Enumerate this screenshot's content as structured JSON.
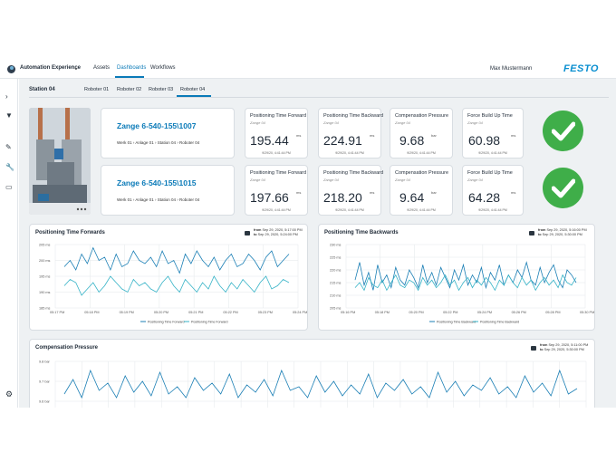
{
  "header": {
    "app_title": "Automation Experience",
    "nav": [
      "Assets",
      "Dashboards",
      "Workflows"
    ],
    "user": "Max Mustermann",
    "brand": "FESTO"
  },
  "station": {
    "label": "Station 04",
    "tabs": [
      "Roboter 01",
      "Roboter 02",
      "Roboter 03",
      "Roboter 04"
    ]
  },
  "rows": [
    {
      "name": "Zange 6-540-155\\1007",
      "path": "Werk 01 › Anlage 01 › Station 04 › Roboter 04",
      "metrics": [
        {
          "title": "Positioning Time Forward",
          "sub": "Zange 04",
          "value": "195.44",
          "unit": "ms",
          "date": "9/29/20, 4:41:44 PM"
        },
        {
          "title": "Positioning Time Backward",
          "sub": "Zange 04",
          "value": "224.91",
          "unit": "ms",
          "date": "9/29/20, 4:41:44 PM"
        },
        {
          "title": "Compensation Pressure",
          "sub": "Zange 04",
          "value": "9.68",
          "unit": "bar",
          "date": "9/29/20, 4:41:44 PM"
        },
        {
          "title": "Force Build Up Time",
          "sub": "Zange 04",
          "value": "60.98",
          "unit": "ms",
          "date": "9/29/20, 4:41:44 PM"
        }
      ],
      "status": "ok"
    },
    {
      "name": "Zange 6-540-155\\1015",
      "path": "Werk 01 › Anlage 01 › Station 04 › Roboter 04",
      "metrics": [
        {
          "title": "Positioning Time Forward",
          "sub": "Zange 04",
          "value": "197.66",
          "unit": "ms",
          "date": "9/29/20, 4:41:44 PM"
        },
        {
          "title": "Positioning Time Backward",
          "sub": "Zange 04",
          "value": "218.20",
          "unit": "ms",
          "date": "9/29/20, 4:41:44 PM"
        },
        {
          "title": "Compensation Pressure",
          "sub": "Zange 04",
          "value": "9.64",
          "unit": "bar",
          "date": "9/29/20, 4:41:44 PM"
        },
        {
          "title": "Force Build Up Time",
          "sub": "Zange 04",
          "value": "64.28",
          "unit": "ms",
          "date": "9/29/20, 4:41:44 PM"
        }
      ],
      "status": "ok"
    }
  ],
  "charts": {
    "forward": {
      "title": "Positioning Time Forwards",
      "from_label": "from",
      "from": "Sep 29, 2020, 5:17:00 PM",
      "to_label": "to",
      "to": "Sep 29, 2020, 5:24:00 PM"
    },
    "backward": {
      "title": "Positioning Time Backwards",
      "from_label": "from",
      "from": "Sep 29, 2020, 5:16:00 PM",
      "to_label": "to",
      "to": "Sep 29, 2020, 5:30:00 PM"
    },
    "pressure": {
      "title": "Compensation Pressure",
      "from_label": "from",
      "from": "Sep 29, 2020, 5:11:00 PM",
      "to_label": "to",
      "to": "Sep 29, 2020, 5:30:00 PM"
    }
  },
  "colors": {
    "accent": "#0a7ab8",
    "series1": "#1b7fb5",
    "series2": "#36b3c7",
    "ok": "#3fae49"
  },
  "chart_data": [
    {
      "type": "line",
      "title": "Positioning Time Forwards",
      "x_ticks": [
        "05:17 PM",
        "05:18 PM",
        "05:19 PM",
        "05:20 PM",
        "05:21 PM",
        "05:22 PM",
        "05:23 PM",
        "05:24 PM"
      ],
      "y_ticks": [
        "185 ms",
        "190 ms",
        "195 ms",
        "200 ms",
        "205 ms"
      ],
      "ylim": [
        185,
        205
      ],
      "series": [
        {
          "name": "Positioning Time Forward",
          "values": [
            198,
            200,
            197,
            202,
            199,
            204,
            200,
            201,
            197,
            202,
            198,
            199,
            203,
            200,
            199,
            201,
            198,
            203,
            199,
            200,
            196,
            202,
            199,
            203,
            200,
            198,
            201,
            197,
            200,
            202,
            198,
            199,
            202,
            200,
            197,
            201,
            203,
            198,
            200,
            202
          ]
        },
        {
          "name": "Positioning Time Forward",
          "values": [
            192,
            194,
            193,
            189,
            191,
            193,
            190,
            192,
            195,
            193,
            191,
            190,
            194,
            192,
            193,
            191,
            190,
            193,
            195,
            192,
            190,
            194,
            192,
            190,
            193,
            191,
            195,
            192,
            190,
            193,
            191,
            194,
            192,
            190,
            193,
            195,
            191,
            192,
            194,
            193
          ]
        }
      ]
    },
    {
      "type": "line",
      "title": "Positioning Time Backwards",
      "x_ticks": [
        "05:16 PM",
        "05:18 PM",
        "05:20 PM",
        "05:22 PM",
        "05:24 PM",
        "05:26 PM",
        "05:28 PM",
        "05:30 PM"
      ],
      "y_ticks": [
        "205 ms",
        "210 ms",
        "215 ms",
        "220 ms",
        "225 ms",
        "230 ms"
      ],
      "ylim": [
        205,
        230
      ],
      "series": [
        {
          "name": "Positioning Time Backward",
          "values": [
            216,
            223,
            214,
            219,
            212,
            222,
            215,
            218,
            213,
            221,
            216,
            214,
            220,
            217,
            213,
            222,
            215,
            219,
            214,
            221,
            217,
            213,
            220,
            216,
            222,
            214,
            218,
            215,
            221,
            213,
            219,
            216,
            222,
            214,
            218,
            215,
            220,
            217,
            223,
            216,
            214,
            221,
            215,
            219,
            222,
            216,
            213,
            220,
            218,
            215
          ]
        },
        {
          "name": "Positioning Time Backward",
          "values": [
            213,
            215,
            212,
            217,
            214,
            213,
            216,
            212,
            215,
            218,
            214,
            213,
            216,
            215,
            212,
            217,
            214,
            216,
            213,
            215,
            218,
            214,
            216,
            212,
            215,
            217,
            213,
            216,
            214,
            217,
            215,
            212,
            216,
            214,
            218,
            215,
            213,
            217,
            214,
            216,
            212,
            215,
            217,
            214,
            216,
            213,
            218,
            215,
            214,
            217
          ]
        }
      ]
    },
    {
      "type": "line",
      "title": "Compensation Pressure",
      "y_ticks": [
        "9.8 bar",
        "9.7 bar",
        "9.6 bar"
      ],
      "ylim": [
        9.58,
        9.8
      ],
      "series": [
        {
          "name": "Compensation Pressure",
          "values": [
            9.62,
            9.7,
            9.6,
            9.75,
            9.64,
            9.68,
            9.6,
            9.72,
            9.63,
            9.69,
            9.61,
            9.74,
            9.62,
            9.66,
            9.6,
            9.71,
            9.64,
            9.68,
            9.62,
            9.73,
            9.6,
            9.67,
            9.63,
            9.7,
            9.61,
            9.75,
            9.64,
            9.66,
            9.6,
            9.72,
            9.63,
            9.69,
            9.61,
            9.67,
            9.62,
            9.73,
            9.6,
            9.68,
            9.64,
            9.7,
            9.62,
            9.66,
            9.6,
            9.74,
            9.63,
            9.69,
            9.61,
            9.67,
            9.64,
            9.71,
            9.62,
            9.66,
            9.6,
            9.72,
            9.63,
            9.68,
            9.61,
            9.75,
            9.62,
            9.65
          ]
        }
      ]
    }
  ]
}
